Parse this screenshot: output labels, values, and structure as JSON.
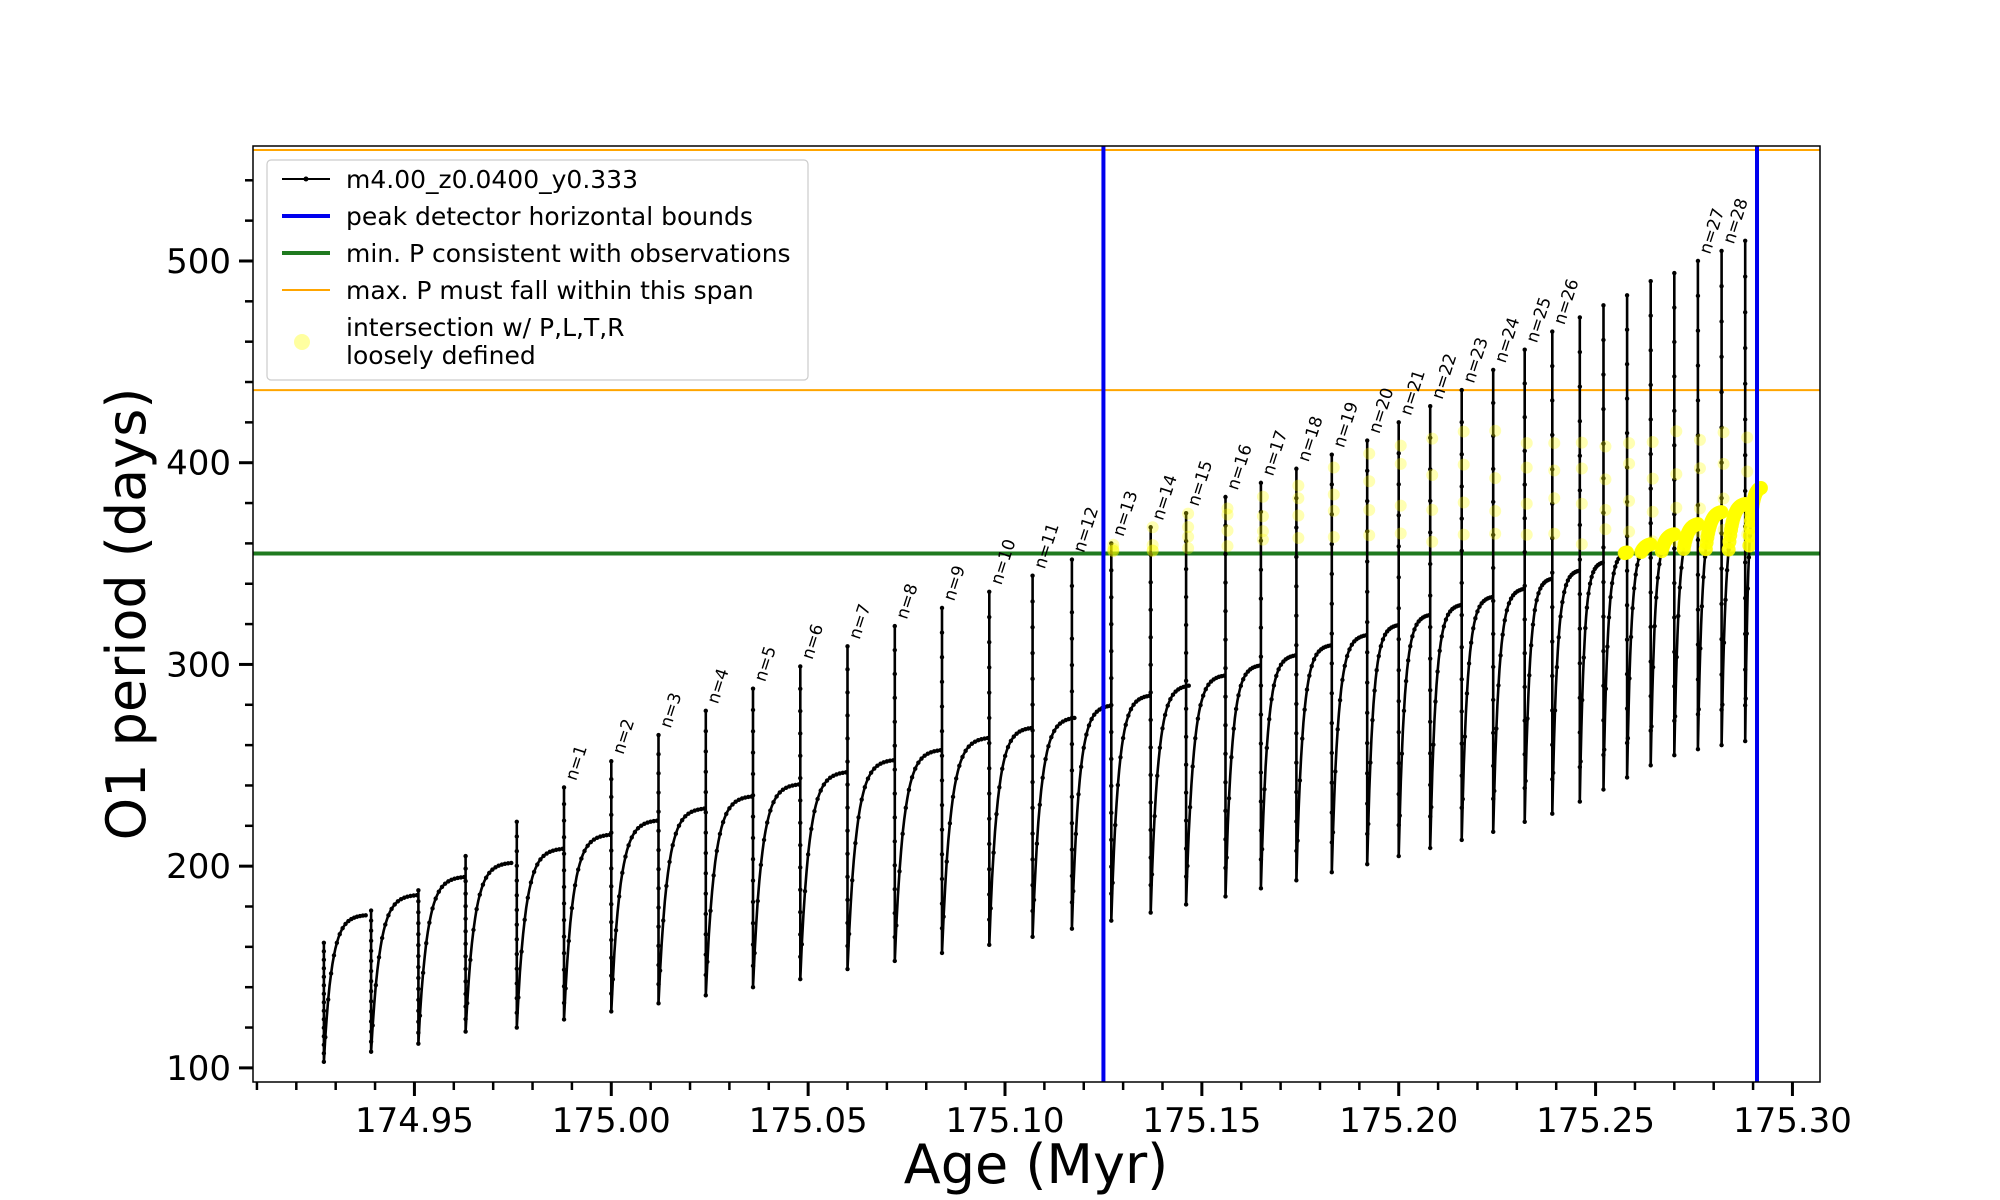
{
  "chart_data": {
    "type": "line",
    "title": "",
    "xlabel": "Age (Myr)",
    "ylabel": "O1 period (days)",
    "xlim": [
      174.909,
      175.307
    ],
    "ylim": [
      93,
      557
    ],
    "xticks": [
      174.95,
      175.0,
      175.05,
      175.1,
      175.15,
      175.2,
      175.25,
      175.3
    ],
    "xtick_labels": [
      "174.95",
      "175.00",
      "175.05",
      "175.10",
      "175.15",
      "175.20",
      "175.25",
      "175.30"
    ],
    "yticks": [
      100,
      200,
      300,
      400,
      500
    ],
    "ytick_labels": [
      "100",
      "200",
      "300",
      "400",
      "500"
    ],
    "grid": false,
    "legend_position": "top-left",
    "reference_lines": {
      "vertical": [
        175.125,
        175.291
      ],
      "horizontal_green": 355,
      "horizontal_orange": [
        436,
        555
      ]
    },
    "pulses": [
      {
        "t": 174.927,
        "dur": 0.011,
        "peak": 162,
        "min": 103,
        "env": 176
      },
      {
        "t": 174.939,
        "dur": 0.012,
        "peak": 178,
        "min": 108,
        "env": 186
      },
      {
        "t": 174.951,
        "dur": 0.012,
        "peak": 188,
        "min": 112,
        "env": 195
      },
      {
        "t": 174.963,
        "dur": 0.012,
        "peak": 205,
        "min": 118,
        "env": 202
      },
      {
        "t": 174.976,
        "dur": 0.012,
        "peak": 222,
        "min": 120,
        "env": 209
      },
      {
        "t": 174.988,
        "dur": 0.012,
        "peak": 239,
        "min": 124,
        "env": 216,
        "label": "n=1"
      },
      {
        "t": 175.0,
        "dur": 0.012,
        "peak": 252,
        "min": 128,
        "env": 223,
        "label": "n=2"
      },
      {
        "t": 175.012,
        "dur": 0.012,
        "peak": 265,
        "min": 132,
        "env": 229,
        "label": "n=3"
      },
      {
        "t": 175.024,
        "dur": 0.012,
        "peak": 277,
        "min": 136,
        "env": 235,
        "label": "n=4"
      },
      {
        "t": 175.036,
        "dur": 0.012,
        "peak": 288,
        "min": 140,
        "env": 241,
        "label": "n=5"
      },
      {
        "t": 175.048,
        "dur": 0.012,
        "peak": 299,
        "min": 144,
        "env": 247,
        "label": "n=6"
      },
      {
        "t": 175.06,
        "dur": 0.012,
        "peak": 309,
        "min": 149,
        "env": 253,
        "label": "n=7"
      },
      {
        "t": 175.072,
        "dur": 0.012,
        "peak": 319,
        "min": 153,
        "env": 258,
        "label": "n=8"
      },
      {
        "t": 175.084,
        "dur": 0.012,
        "peak": 328,
        "min": 157,
        "env": 264,
        "label": "n=9"
      },
      {
        "t": 175.096,
        "dur": 0.011,
        "peak": 336,
        "min": 161,
        "env": 269,
        "label": "n=10"
      },
      {
        "t": 175.107,
        "dur": 0.011,
        "peak": 344,
        "min": 165,
        "env": 274,
        "label": "n=11"
      },
      {
        "t": 175.117,
        "dur": 0.01,
        "peak": 352,
        "min": 169,
        "env": 280,
        "label": "n=12"
      },
      {
        "t": 175.127,
        "dur": 0.01,
        "peak": 360,
        "min": 173,
        "env": 285,
        "label": "n=13"
      },
      {
        "t": 175.137,
        "dur": 0.01,
        "peak": 368,
        "min": 177,
        "env": 290,
        "label": "n=14"
      },
      {
        "t": 175.146,
        "dur": 0.01,
        "peak": 375,
        "min": 181,
        "env": 295,
        "label": "n=15"
      },
      {
        "t": 175.156,
        "dur": 0.009,
        "peak": 383,
        "min": 185,
        "env": 300,
        "label": "n=16"
      },
      {
        "t": 175.165,
        "dur": 0.009,
        "peak": 390,
        "min": 189,
        "env": 305,
        "label": "n=17"
      },
      {
        "t": 175.174,
        "dur": 0.009,
        "peak": 397,
        "min": 193,
        "env": 310,
        "label": "n=18"
      },
      {
        "t": 175.183,
        "dur": 0.009,
        "peak": 404,
        "min": 197,
        "env": 315,
        "label": "n=19"
      },
      {
        "t": 175.192,
        "dur": 0.008,
        "peak": 411,
        "min": 201,
        "env": 320,
        "label": "n=20"
      },
      {
        "t": 175.2,
        "dur": 0.008,
        "peak": 420,
        "min": 205,
        "env": 325,
        "label": "n=21"
      },
      {
        "t": 175.208,
        "dur": 0.008,
        "peak": 428,
        "min": 209,
        "env": 330,
        "label": "n=22"
      },
      {
        "t": 175.216,
        "dur": 0.008,
        "peak": 436,
        "min": 213,
        "env": 334,
        "label": "n=23"
      },
      {
        "t": 175.224,
        "dur": 0.008,
        "peak": 446,
        "min": 217,
        "env": 338,
        "label": "n=24"
      },
      {
        "t": 175.232,
        "dur": 0.007,
        "peak": 456,
        "min": 222,
        "env": 343,
        "label": "n=25"
      },
      {
        "t": 175.239,
        "dur": 0.007,
        "peak": 465,
        "min": 226,
        "env": 347,
        "label": "n=26"
      },
      {
        "t": 175.246,
        "dur": 0.006,
        "peak": 472,
        "min": 232,
        "env": 351
      },
      {
        "t": 175.252,
        "dur": 0.006,
        "peak": 478,
        "min": 238,
        "env": 356
      },
      {
        "t": 175.258,
        "dur": 0.006,
        "peak": 483,
        "min": 244,
        "env": 360
      },
      {
        "t": 175.264,
        "dur": 0.006,
        "peak": 490,
        "min": 250,
        "env": 365
      },
      {
        "t": 175.27,
        "dur": 0.006,
        "peak": 494,
        "min": 255,
        "env": 370
      },
      {
        "t": 175.276,
        "dur": 0.006,
        "peak": 500,
        "min": 258,
        "env": 376,
        "label": "n=27"
      },
      {
        "t": 175.282,
        "dur": 0.006,
        "peak": 505,
        "min": 260,
        "env": 380,
        "label": "n=28"
      },
      {
        "t": 175.288,
        "dur": 0.004,
        "peak": 510,
        "min": 262,
        "env": 388
      }
    ],
    "series": [
      {
        "name": "m4.00_z0.0400_y0.333",
        "color": "#000000",
        "style": "line-with-small-markers"
      }
    ],
    "reference_series": [
      {
        "name": "peak detector horizontal bounds",
        "color": "#0000ee",
        "kind": "vertical-lines"
      },
      {
        "name": "min. P consistent with observations",
        "color": "#1f7a1f",
        "kind": "horizontal-line"
      },
      {
        "name": "max. P must fall within this span",
        "color": "#ffa500",
        "kind": "horizontal-band"
      },
      {
        "name": "intersection w/ P,L,T,R\nloosely defined",
        "color": "#ffff00",
        "kind": "highlight-points"
      }
    ]
  },
  "legend": {
    "entries": [
      {
        "label": "m4.00_z0.0400_y0.333",
        "color": "#000000",
        "symbol": "line-dot"
      },
      {
        "label": "peak detector horizontal bounds",
        "color": "#0000ee",
        "symbol": "thick-line"
      },
      {
        "label": "min. P consistent with observations",
        "color": "#1f7a1f",
        "symbol": "thick-line"
      },
      {
        "label": "max. P must fall within this span",
        "color": "#ffa500",
        "symbol": "thin-line"
      },
      {
        "label_line1": "intersection w/ P,L,T,R",
        "label_line2": "loosely defined",
        "color": "#ffffa0",
        "symbol": "circle"
      }
    ]
  }
}
